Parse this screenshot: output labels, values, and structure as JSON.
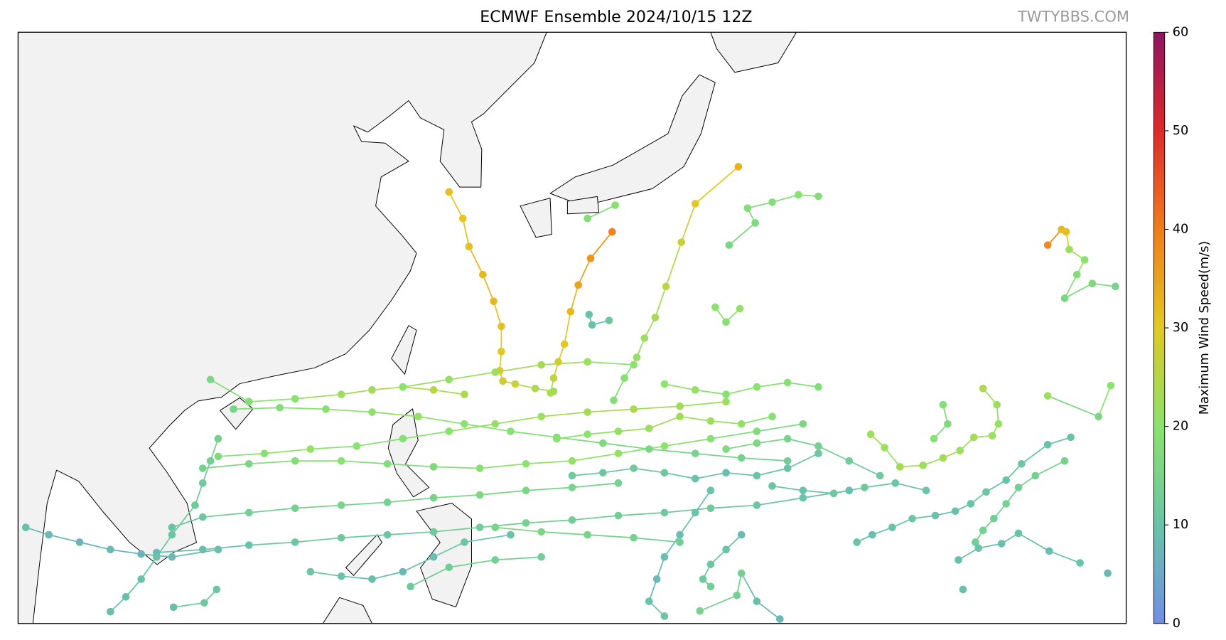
{
  "title": "ECMWF Ensemble 2024/10/15 12Z",
  "watermark": "TWTYBBS.COM",
  "map": {
    "extent": [
      96,
      168,
      5,
      45
    ]
  },
  "colorbar": {
    "label": "Maximum Wind Speed(m/s)",
    "range": [
      0,
      60
    ],
    "ticks": [
      0,
      10,
      20,
      30,
      40,
      50,
      60
    ],
    "colormap": [
      "#6f8fe6",
      "#69c3a8",
      "#8ae36c",
      "#e2c824",
      "#ef7d1c",
      "#dd2a2a",
      "#8e1560"
    ]
  },
  "tracks": [
    [
      [
        130.8,
        20.7,
        22
      ],
      [
        129.6,
        20.9,
        24
      ],
      [
        128.3,
        21.2,
        27
      ],
      [
        127.5,
        21.4,
        28
      ],
      [
        127.3,
        22.1,
        29
      ],
      [
        127.4,
        23.4,
        30
      ],
      [
        127.4,
        25.1,
        31
      ],
      [
        126.9,
        26.8,
        32
      ],
      [
        126.2,
        28.6,
        32
      ],
      [
        125.3,
        30.5,
        31
      ],
      [
        124.9,
        32.4,
        30
      ],
      [
        124.0,
        34.2,
        31
      ]
    ],
    [
      [
        130.6,
        20.6,
        24
      ],
      [
        130.8,
        21.6,
        26
      ],
      [
        131.1,
        22.7,
        28
      ],
      [
        131.5,
        23.9,
        30
      ],
      [
        131.9,
        26.1,
        32
      ],
      [
        132.4,
        27.9,
        35
      ],
      [
        133.2,
        29.7,
        37
      ],
      [
        134.6,
        31.5,
        39
      ]
    ],
    [
      [
        134.7,
        20.1,
        18
      ],
      [
        135.4,
        21.6,
        19
      ],
      [
        136.2,
        23.0,
        21
      ],
      [
        136.7,
        24.3,
        22
      ],
      [
        137.4,
        25.7,
        23
      ],
      [
        138.1,
        27.8,
        25
      ],
      [
        139.1,
        30.8,
        27
      ],
      [
        140.0,
        33.4,
        30
      ],
      [
        142.8,
        35.9,
        33
      ]
    ],
    [
      [
        142.2,
        30.6,
        16
      ],
      [
        143.9,
        32.1,
        17
      ],
      [
        143.4,
        33.1,
        18
      ],
      [
        145.0,
        33.5,
        18
      ],
      [
        146.7,
        34.0,
        19
      ],
      [
        148.0,
        33.9,
        18
      ]
    ],
    [
      [
        133.0,
        32.4,
        18
      ],
      [
        134.8,
        33.3,
        19
      ]
    ],
    [
      [
        162.9,
        30.6,
        38
      ],
      [
        163.8,
        31.65,
        32
      ],
      [
        164.1,
        31.5,
        31
      ],
      [
        164.3,
        30.3,
        22
      ],
      [
        165.3,
        29.6,
        20
      ],
      [
        164.8,
        28.6,
        18
      ],
      [
        164.0,
        27.0,
        16
      ],
      [
        165.8,
        28.0,
        17
      ],
      [
        167.3,
        27.8,
        15
      ]
    ],
    [
      [
        151.4,
        17.8,
        22
      ],
      [
        152.3,
        16.9,
        22
      ],
      [
        153.3,
        15.6,
        23
      ],
      [
        154.8,
        15.7,
        22
      ],
      [
        156.1,
        16.2,
        23
      ],
      [
        157.2,
        16.7,
        22
      ],
      [
        158.1,
        17.6,
        23
      ],
      [
        159.3,
        17.7,
        22
      ],
      [
        159.7,
        18.5,
        21
      ],
      [
        159.6,
        19.8,
        22
      ],
      [
        158.7,
        20.9,
        24
      ]
    ],
    [
      [
        164.4,
        17.6,
        10
      ],
      [
        162.9,
        17.1,
        10
      ],
      [
        161.2,
        15.8,
        11
      ],
      [
        160.2,
        14.7,
        10
      ],
      [
        158.9,
        13.9,
        11
      ],
      [
        157.9,
        13.1,
        10
      ],
      [
        156.9,
        12.6,
        9
      ],
      [
        155.6,
        12.3,
        10
      ],
      [
        154.1,
        12.1,
        11
      ],
      [
        152.8,
        11.5,
        10
      ],
      [
        151.5,
        11.0,
        9
      ],
      [
        150.5,
        10.5,
        10
      ]
    ],
    [
      [
        164.0,
        16.0,
        14
      ],
      [
        162.1,
        15.0,
        14
      ],
      [
        161.0,
        14.2,
        13
      ],
      [
        160.2,
        13.1,
        14
      ],
      [
        159.4,
        12.1,
        13
      ],
      [
        158.7,
        11.3,
        14
      ],
      [
        158.2,
        10.5,
        13
      ]
    ],
    [
      [
        165.0,
        9.1,
        10
      ],
      [
        163.0,
        9.9,
        9
      ],
      [
        161.0,
        11.1,
        10
      ],
      [
        159.9,
        10.4,
        9
      ],
      [
        158.4,
        10.1,
        10
      ],
      [
        157.1,
        9.3,
        9
      ]
    ],
    [
      [
        147,
        18.5,
        16
      ],
      [
        144,
        18,
        18
      ],
      [
        141,
        17.5,
        19
      ],
      [
        138,
        17,
        20
      ],
      [
        135,
        16.5,
        21
      ],
      [
        132,
        16,
        21
      ],
      [
        129,
        15.8,
        20
      ],
      [
        126,
        15.5,
        19
      ],
      [
        123,
        15.6,
        17
      ],
      [
        120,
        15.8,
        18
      ],
      [
        117,
        16,
        19
      ],
      [
        114,
        16,
        18
      ],
      [
        111,
        15.8,
        16
      ],
      [
        108,
        15.5,
        14
      ]
    ],
    [
      [
        150,
        14,
        9
      ],
      [
        147,
        13.5,
        10
      ],
      [
        144,
        13,
        11
      ],
      [
        141,
        12.8,
        12
      ],
      [
        138,
        12.5,
        12
      ],
      [
        135,
        12.3,
        13
      ],
      [
        132,
        12,
        13
      ],
      [
        129,
        11.8,
        14
      ],
      [
        126,
        11.5,
        13
      ],
      [
        123,
        11.2,
        12
      ],
      [
        120,
        11,
        11
      ],
      [
        117,
        10.8,
        12
      ],
      [
        114,
        10.5,
        11
      ],
      [
        111,
        10.3,
        10
      ],
      [
        108,
        10,
        9
      ],
      [
        105,
        9.8,
        8
      ]
    ],
    [
      [
        142,
        20,
        22
      ],
      [
        139,
        19.7,
        23
      ],
      [
        136,
        19.5,
        24
      ],
      [
        133,
        19.3,
        23
      ],
      [
        130,
        19,
        22
      ],
      [
        127,
        18.5,
        21
      ],
      [
        124,
        18,
        20
      ],
      [
        121,
        17.5,
        19
      ],
      [
        118,
        17,
        20
      ],
      [
        115,
        16.8,
        21
      ],
      [
        112,
        16.5,
        19
      ],
      [
        109,
        16.3,
        17
      ]
    ],
    [
      [
        146,
        16,
        13
      ],
      [
        143,
        16.2,
        14
      ],
      [
        140,
        16.5,
        15
      ],
      [
        137,
        16.8,
        16
      ],
      [
        134,
        17.2,
        17
      ],
      [
        131,
        17.6,
        18
      ],
      [
        128,
        18,
        19
      ],
      [
        125,
        18.5,
        20
      ],
      [
        122,
        19,
        21
      ],
      [
        119,
        19.3,
        20
      ],
      [
        116,
        19.5,
        19
      ],
      [
        113,
        19.6,
        18
      ],
      [
        110,
        19.5,
        15
      ]
    ],
    [
      [
        141,
        14,
        10
      ],
      [
        140,
        12.5,
        10
      ],
      [
        139,
        11,
        9
      ],
      [
        138,
        9.5,
        9
      ],
      [
        137.5,
        8,
        8
      ],
      [
        137,
        6.5,
        10
      ],
      [
        138,
        5.5,
        11
      ]
    ],
    [
      [
        145.5,
        5.3,
        8
      ],
      [
        144,
        6.5,
        9
      ],
      [
        143,
        8.4,
        14
      ],
      [
        142.7,
        6.9,
        14
      ],
      [
        140.3,
        5.85,
        15
      ]
    ],
    [
      [
        109,
        10,
        9
      ],
      [
        106,
        9.5,
        8
      ],
      [
        104,
        9.7,
        7
      ],
      [
        102,
        10,
        8
      ],
      [
        100,
        10.5,
        7
      ],
      [
        98,
        11,
        8
      ],
      [
        96.5,
        11.5,
        9
      ]
    ],
    [
      [
        125,
        20.5,
        24
      ],
      [
        123,
        20.8,
        25
      ],
      [
        121,
        21,
        24
      ],
      [
        119,
        20.8,
        23
      ],
      [
        117,
        20.5,
        22
      ],
      [
        114,
        20.2,
        20
      ],
      [
        111,
        20,
        18
      ],
      [
        108.5,
        21.5,
        16
      ]
    ],
    [
      [
        135,
        14.5,
        14
      ],
      [
        132,
        14.2,
        15
      ],
      [
        129,
        14,
        16
      ],
      [
        126,
        13.7,
        16
      ],
      [
        123,
        13.5,
        15
      ],
      [
        120,
        13.2,
        14
      ],
      [
        117,
        13,
        15
      ],
      [
        114,
        12.8,
        14
      ],
      [
        111,
        12.5,
        13
      ],
      [
        108,
        12.2,
        11
      ],
      [
        106,
        11.5,
        10
      ]
    ],
    [
      [
        136,
        22.5,
        20
      ],
      [
        133,
        22.7,
        22
      ],
      [
        130,
        22.5,
        23
      ],
      [
        127,
        22,
        22
      ],
      [
        124,
        21.5,
        21
      ],
      [
        121,
        21,
        20
      ]
    ],
    [
      [
        148,
        16.5,
        11
      ],
      [
        146,
        15.5,
        10
      ],
      [
        144,
        15,
        10
      ],
      [
        142,
        15.2,
        9
      ],
      [
        140,
        14.8,
        10
      ],
      [
        138,
        15.2,
        11
      ],
      [
        136,
        15.5,
        12
      ],
      [
        134,
        15.2,
        11
      ],
      [
        132,
        15,
        12
      ]
    ],
    [
      [
        145,
        19,
        19
      ],
      [
        143,
        18.5,
        21
      ],
      [
        141,
        18.7,
        22
      ],
      [
        139,
        19,
        23
      ],
      [
        137,
        18.2,
        22
      ],
      [
        135,
        18,
        21
      ],
      [
        133,
        17.8,
        20
      ],
      [
        131,
        17.5,
        19
      ]
    ],
    [
      [
        152,
        15,
        12
      ],
      [
        150,
        16,
        13
      ],
      [
        148,
        17,
        14
      ],
      [
        146,
        17.5,
        15
      ],
      [
        144,
        17.2,
        16
      ],
      [
        142,
        16.8,
        17
      ]
    ],
    [
      [
        133.1,
        25.9,
        10
      ],
      [
        133.3,
        25.2,
        10
      ],
      [
        134.4,
        25.5,
        11
      ]
    ],
    [
      [
        141.3,
        26.4,
        20
      ],
      [
        142,
        25.4,
        19
      ],
      [
        142.9,
        26.3,
        21
      ]
    ],
    [
      [
        128,
        11,
        10
      ],
      [
        125,
        10.5,
        11
      ],
      [
        123,
        9.5,
        9
      ],
      [
        121,
        8.5,
        8
      ],
      [
        119,
        8,
        9
      ],
      [
        117,
        8.2,
        10
      ],
      [
        115,
        8.5,
        11
      ]
    ],
    [
      [
        130,
        9.5,
        13
      ],
      [
        127,
        9.3,
        14
      ],
      [
        124,
        8.8,
        13
      ],
      [
        121.5,
        7.5,
        12
      ]
    ],
    [
      [
        109,
        17.5,
        14
      ],
      [
        108.5,
        16,
        13
      ],
      [
        108,
        14.5,
        12
      ],
      [
        107.5,
        13,
        12
      ],
      [
        106,
        11,
        11
      ],
      [
        105,
        9.5,
        10
      ],
      [
        104,
        8,
        10
      ],
      [
        103,
        6.8,
        9
      ],
      [
        102,
        5.8,
        9
      ]
    ],
    [
      [
        108.9,
        7.3,
        11
      ],
      [
        108.1,
        6.4,
        12
      ],
      [
        106.1,
        6.1,
        9
      ]
    ],
    [
      [
        156.1,
        19.8,
        18
      ],
      [
        156.4,
        18.5,
        17
      ],
      [
        155.5,
        17.5,
        19
      ]
    ],
    [
      [
        167.0,
        21.1,
        20
      ],
      [
        166.2,
        19.0,
        16
      ],
      [
        162.9,
        20.4,
        22
      ]
    ],
    [
      [
        166.8,
        8.4,
        8
      ]
    ],
    [
      [
        157.4,
        7.3,
        9
      ]
    ],
    [
      [
        148,
        21,
        18
      ],
      [
        146,
        21.3,
        19
      ],
      [
        144,
        21,
        20
      ],
      [
        142,
        20.5,
        19
      ],
      [
        140,
        20.8,
        21
      ],
      [
        138,
        21.2,
        20
      ]
    ],
    [
      [
        155,
        14,
        10
      ],
      [
        153,
        14.5,
        11
      ],
      [
        151,
        14.2,
        12
      ],
      [
        149,
        13.8,
        11
      ],
      [
        147,
        14,
        10
      ],
      [
        145,
        14.3,
        11
      ]
    ],
    [
      [
        139,
        10.5,
        13
      ],
      [
        136,
        10.8,
        14
      ],
      [
        133,
        11,
        15
      ],
      [
        130,
        11.2,
        16
      ],
      [
        127,
        11.5,
        15
      ]
    ],
    [
      [
        143,
        11,
        9
      ],
      [
        142,
        10,
        10
      ],
      [
        141,
        9,
        11
      ],
      [
        140.5,
        8,
        12
      ],
      [
        141,
        7.5,
        13
      ]
    ]
  ]
}
